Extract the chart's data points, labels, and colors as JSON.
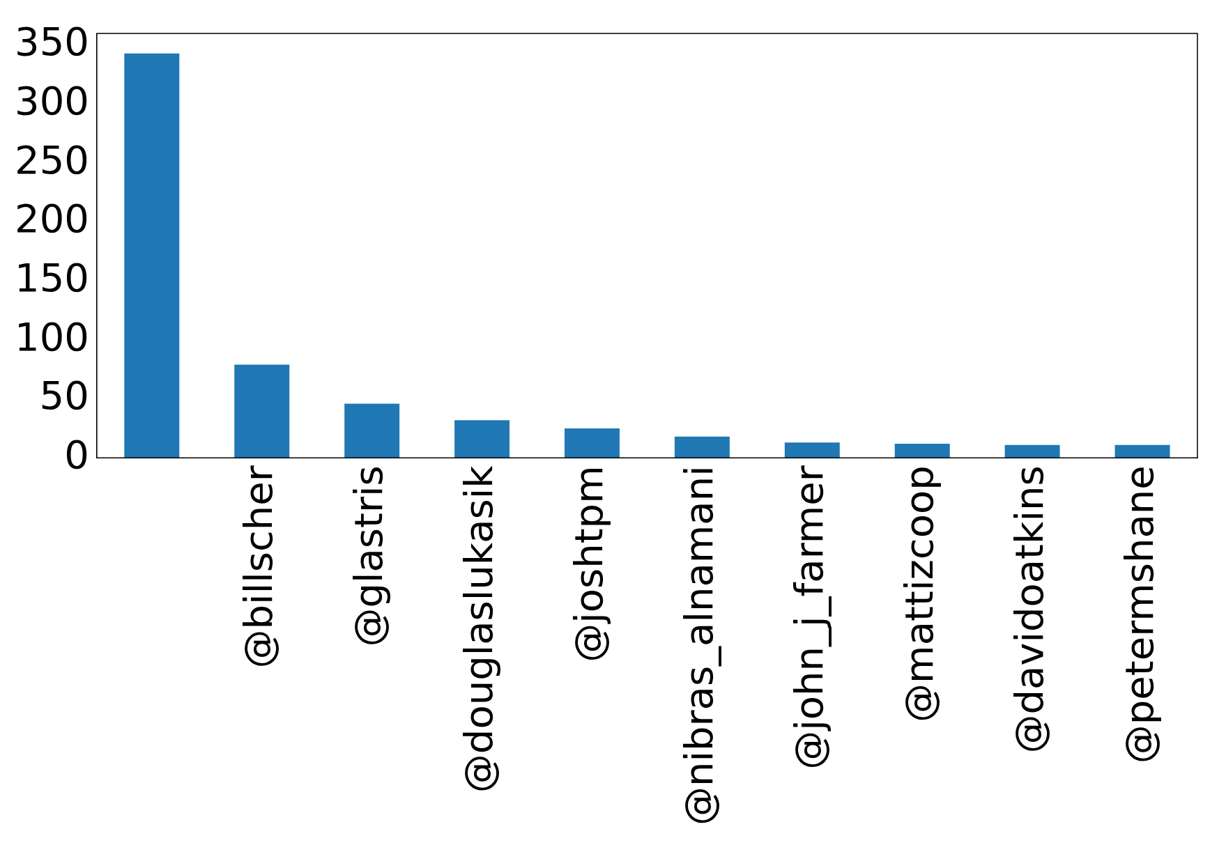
{
  "chart_data": {
    "type": "bar",
    "categories": [
      null,
      "@billscher",
      "@glastris",
      "@douglaslukasik",
      "@joshtpm",
      "@nibras_alnamani",
      "@john_j_farmer",
      "@mattizcoop",
      "@davidoatkins",
      "@petermshane"
    ],
    "values": [
      343,
      79,
      46,
      32,
      25,
      18,
      13,
      12,
      11,
      11
    ],
    "color": "#1f77b4",
    "ylim": [
      0,
      360
    ],
    "yticks": [
      0,
      50,
      100,
      150,
      200,
      250,
      300,
      350
    ],
    "grid": false,
    "legend": false
  }
}
